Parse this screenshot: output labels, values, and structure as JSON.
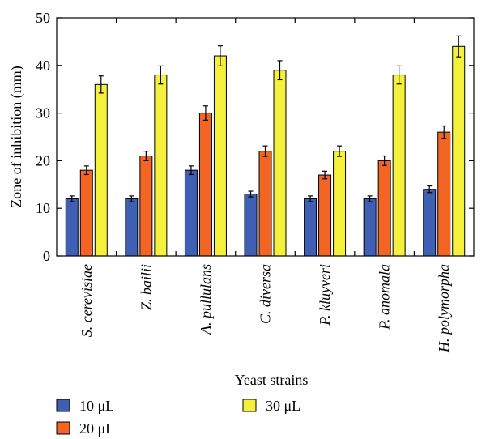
{
  "chart_data": {
    "type": "bar",
    "xlabel": "Yeast strains",
    "ylabel": "Zone of inhibition (mm)",
    "ylim": [
      0,
      50
    ],
    "yticks": [
      0,
      10,
      20,
      30,
      40,
      50
    ],
    "grid": false,
    "legend_position": "bottom",
    "categories": [
      "S. cerevisiae",
      "Z. bailii",
      "A. pullulans",
      "C. diversa",
      "P. kluyveri",
      "P. anomala",
      "H. polymorpha"
    ],
    "series": [
      {
        "name": "10 μL",
        "color": "#3f5fb5",
        "values": [
          12,
          12,
          18,
          13,
          12,
          12,
          14
        ],
        "errors": [
          0.6,
          0.6,
          0.9,
          0.6,
          0.6,
          0.6,
          0.7
        ]
      },
      {
        "name": "20 μL",
        "color": "#f26522",
        "values": [
          18,
          21,
          30,
          22,
          17,
          20,
          26
        ],
        "errors": [
          0.9,
          1.0,
          1.5,
          1.1,
          0.8,
          1.0,
          1.3
        ]
      },
      {
        "name": "30 μL",
        "color": "#f5f03b",
        "values": [
          36,
          38,
          42,
          39,
          22,
          38,
          44
        ],
        "errors": [
          1.8,
          1.9,
          2.1,
          2.0,
          1.1,
          1.9,
          2.2
        ]
      }
    ]
  }
}
